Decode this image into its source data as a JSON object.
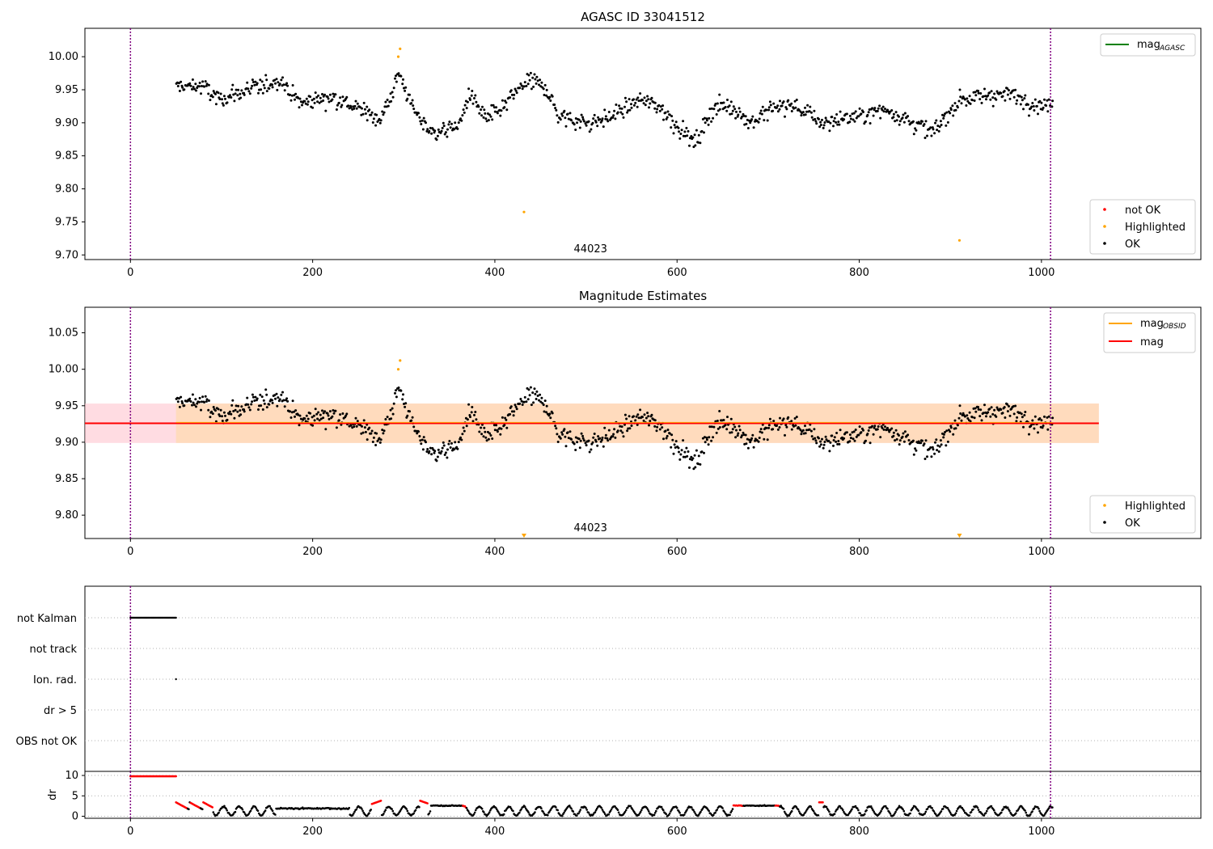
{
  "colors": {
    "ok": "#000000",
    "highlighted": "#ffa500",
    "not_ok": "#ff0000",
    "mag": "#ff0000",
    "mag_obsid": "#ffa500",
    "mag_agasc": "#008000",
    "band_outer": "#ffc0cb",
    "band_inner": "#ffdab9",
    "vline": "#800080",
    "grid": "#b0b0b0"
  },
  "chart_data": [
    {
      "id": "agasc",
      "type": "scatter",
      "title": "AGASC ID 33041512",
      "xlim": [
        -50,
        1175
      ],
      "ylim": [
        9.693,
        10.043
      ],
      "xticks": [
        0,
        200,
        400,
        600,
        800,
        1000
      ],
      "yticks": [
        9.7,
        9.75,
        9.8,
        9.85,
        9.9,
        9.95,
        10.0
      ],
      "ytick_labels": [
        "9.70",
        "9.75",
        "9.80",
        "9.85",
        "9.90",
        "9.95",
        "10.00"
      ],
      "vlines": [
        0,
        1010
      ],
      "obsid_label": {
        "text": "44023",
        "x": 505
      },
      "legend_lines": [
        {
          "label": "mag",
          "sub": "AGASC",
          "color": "#008000"
        }
      ],
      "legend_points": [
        {
          "label": "not OK",
          "color": "#ff0000"
        },
        {
          "label": "Highlighted",
          "color": "#ffa500"
        },
        {
          "label": "OK",
          "color": "#000000"
        }
      ],
      "highlighted": [
        [
          294,
          10.0
        ],
        [
          296,
          10.012
        ],
        [
          432,
          9.765
        ],
        [
          910,
          9.722
        ]
      ],
      "series_model": {
        "x_start": 50,
        "x_end": 1012,
        "step": 1,
        "points_per_step": 1
      }
    },
    {
      "id": "estimates",
      "type": "scatter",
      "title": "Magnitude Estimates",
      "xlim": [
        -50,
        1175
      ],
      "ylim": [
        9.768,
        10.085
      ],
      "xticks": [
        0,
        200,
        400,
        600,
        800,
        1000
      ],
      "yticks": [
        9.8,
        9.85,
        9.9,
        9.95,
        10.0,
        10.05
      ],
      "ytick_labels": [
        "9.80",
        "9.85",
        "9.90",
        "9.95",
        "10.00",
        "10.05"
      ],
      "vlines": [
        0,
        1010
      ],
      "mag_line": 9.926,
      "band": {
        "x0": -50,
        "x1": 1063,
        "y0": 9.899,
        "y1": 9.953
      },
      "obsid_label": {
        "text": "44023",
        "x": 505
      },
      "legend_lines": [
        {
          "label": "mag",
          "sub": "OBSID",
          "color": "#ffa500"
        },
        {
          "label": "mag",
          "sub": "",
          "color": "#ff0000"
        }
      ],
      "legend_points": [
        {
          "label": "Highlighted",
          "color": "#ffa500"
        },
        {
          "label": "OK",
          "color": "#000000"
        }
      ],
      "highlighted": [
        [
          294,
          10.0
        ],
        [
          296,
          10.012
        ]
      ],
      "off_scale_markers": [
        432,
        910
      ]
    },
    {
      "id": "flags",
      "type": "scatter",
      "xlim": [
        -50,
        1175
      ],
      "categories": [
        "not Kalman",
        "not track",
        "Ion. rad.",
        "dr > 5",
        "OBS not OK"
      ],
      "vlines": [
        0,
        1010
      ],
      "not_kalman_range": [
        0,
        50
      ],
      "ion_rad_points": [
        50
      ]
    },
    {
      "id": "dr",
      "type": "scatter",
      "ylabel": "dr",
      "xlim": [
        -50,
        1175
      ],
      "ylim": [
        -0.5,
        11
      ],
      "yticks": [
        0,
        5,
        10
      ],
      "ytick_labels": [
        "0",
        "5",
        "10"
      ],
      "xticks": [
        0,
        200,
        400,
        600,
        800,
        1000
      ],
      "vlines": [
        0,
        1010
      ],
      "red_at_ten_range": [
        0,
        50
      ],
      "red_segments": [
        [
          50,
          62
        ],
        [
          66,
          76
        ],
        [
          80,
          90
        ],
        [
          265,
          275
        ],
        [
          318,
          326
        ],
        [
          365,
          368
        ],
        [
          662,
          672
        ],
        [
          708,
          712
        ],
        [
          756,
          760
        ]
      ]
    }
  ]
}
